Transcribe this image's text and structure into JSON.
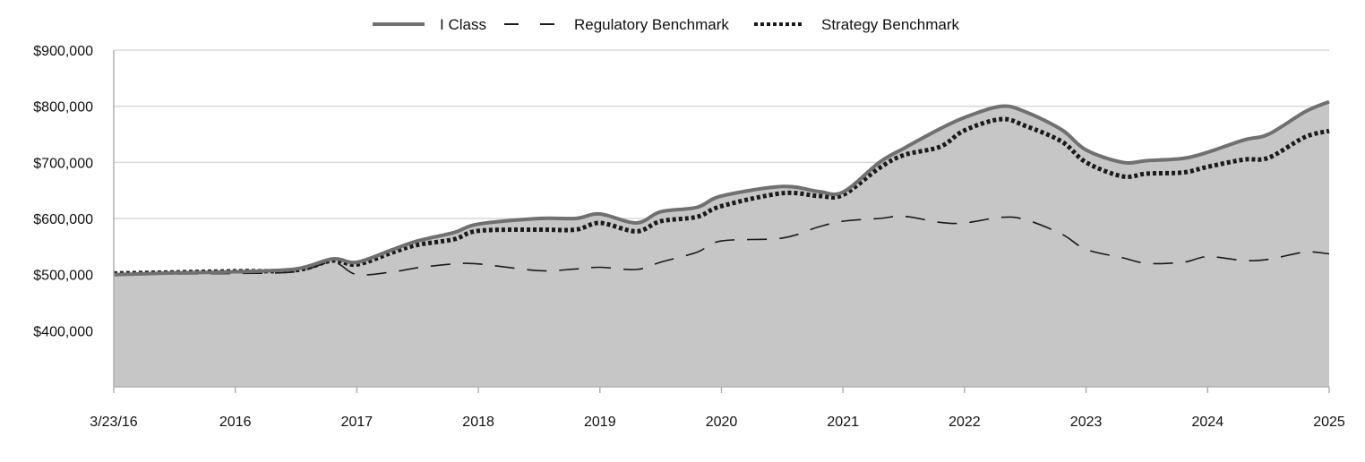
{
  "chart_data": {
    "type": "area",
    "title": "",
    "xlabel": "",
    "ylabel": "",
    "ylim": [
      300000,
      900000
    ],
    "yticks": [
      400000,
      500000,
      600000,
      700000,
      800000,
      900000
    ],
    "ytick_labels": [
      "$400,000",
      "$500,000",
      "$600,000",
      "$700,000",
      "$800,000",
      "$900,000"
    ],
    "xlim": [
      2016.0,
      2026.0
    ],
    "xticks": [
      2016.0,
      2017.0,
      2018.0,
      2019.0,
      2020.0,
      2021.0,
      2022.0,
      2023.0,
      2024.0,
      2025.0,
      2026.0
    ],
    "xtick_labels": [
      "3/23/16",
      "2016",
      "2017",
      "2018",
      "2019",
      "2020",
      "2021",
      "2022",
      "2023",
      "2024",
      "2025"
    ],
    "grid": "horizontal",
    "legend": "top-center",
    "colors": {
      "area_fill": "#c6c6c6",
      "i_class": "#707070",
      "regulatory": "#1a1a1a",
      "strategy": "#1a1a1a",
      "grid": "#d8d8d8",
      "axis": "#b0b0b0"
    },
    "series": [
      {
        "name": "I Class",
        "style": "solid",
        "filled": true,
        "x": [
          2016.0,
          2016.5,
          2017.0,
          2017.5,
          2017.8,
          2018.0,
          2018.3,
          2018.5,
          2018.8,
          2019.0,
          2019.5,
          2019.8,
          2020.0,
          2020.3,
          2020.5,
          2020.8,
          2021.0,
          2021.5,
          2021.8,
          2022.0,
          2022.3,
          2022.5,
          2022.8,
          2023.0,
          2023.3,
          2023.5,
          2023.8,
          2024.0,
          2024.3,
          2024.5,
          2024.8,
          2025.0,
          2025.3,
          2025.5,
          2025.8,
          2026.0
        ],
        "values": [
          500000,
          503000,
          505000,
          510000,
          528000,
          522000,
          545000,
          560000,
          575000,
          590000,
          600000,
          600000,
          608000,
          592000,
          612000,
          620000,
          640000,
          657000,
          648000,
          647000,
          700000,
          725000,
          760000,
          780000,
          800000,
          790000,
          758000,
          722000,
          700000,
          703000,
          707000,
          718000,
          740000,
          750000,
          790000,
          808000
        ]
      },
      {
        "name": "Regulatory Benchmark",
        "style": "dashed",
        "filled": false,
        "x": [
          2016.0,
          2016.5,
          2017.0,
          2017.5,
          2017.8,
          2018.0,
          2018.3,
          2018.5,
          2018.8,
          2019.0,
          2019.5,
          2019.8,
          2020.0,
          2020.3,
          2020.5,
          2020.8,
          2021.0,
          2021.5,
          2021.8,
          2022.0,
          2022.3,
          2022.5,
          2022.8,
          2023.0,
          2023.3,
          2023.5,
          2023.8,
          2024.0,
          2024.3,
          2024.5,
          2024.8,
          2025.0,
          2025.3,
          2025.5,
          2025.8,
          2026.0
        ],
        "values": [
          500000,
          501000,
          502000,
          505000,
          522000,
          500000,
          505000,
          512000,
          519000,
          519000,
          507000,
          510000,
          513000,
          509000,
          522000,
          540000,
          560000,
          565000,
          585000,
          595000,
          600000,
          604000,
          593000,
          592000,
          602000,
          598000,
          572000,
          545000,
          530000,
          520000,
          522000,
          532000,
          525000,
          527000,
          540000,
          537000
        ]
      },
      {
        "name": "Strategy Benchmark",
        "style": "dotted",
        "filled": false,
        "x": [
          2016.0,
          2016.5,
          2017.0,
          2017.5,
          2017.8,
          2018.0,
          2018.3,
          2018.5,
          2018.8,
          2019.0,
          2019.5,
          2019.8,
          2020.0,
          2020.3,
          2020.5,
          2020.8,
          2021.0,
          2021.5,
          2021.8,
          2022.0,
          2022.3,
          2022.5,
          2022.8,
          2023.0,
          2023.3,
          2023.5,
          2023.8,
          2024.0,
          2024.3,
          2024.5,
          2024.8,
          2025.0,
          2025.3,
          2025.5,
          2025.8,
          2026.0
        ],
        "values": [
          502000,
          504000,
          506000,
          508000,
          525000,
          518000,
          540000,
          553000,
          563000,
          578000,
          580000,
          580000,
          592000,
          577000,
          595000,
          603000,
          622000,
          645000,
          640000,
          642000,
          690000,
          713000,
          728000,
          757000,
          777000,
          765000,
          737000,
          700000,
          675000,
          680000,
          682000,
          692000,
          705000,
          708000,
          745000,
          756000
        ]
      }
    ]
  }
}
